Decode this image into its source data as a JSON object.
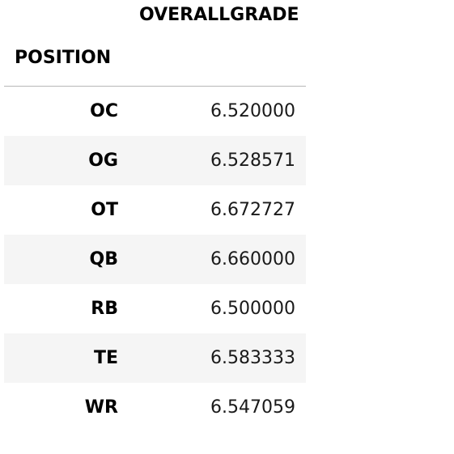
{
  "table": {
    "column_header": "OVERALLGRADE",
    "index_name": "POSITION",
    "rows": [
      {
        "label": "OC",
        "value": "6.520000"
      },
      {
        "label": "OG",
        "value": "6.528571"
      },
      {
        "label": "OT",
        "value": "6.672727"
      },
      {
        "label": "QB",
        "value": "6.660000"
      },
      {
        "label": "RB",
        "value": "6.500000"
      },
      {
        "label": "TE",
        "value": "6.583333"
      },
      {
        "label": "WR",
        "value": "6.547059"
      }
    ]
  },
  "colors": {
    "stripe": "#f5f5f5",
    "header_rule": "#b8b8b8",
    "text": "#000000"
  }
}
